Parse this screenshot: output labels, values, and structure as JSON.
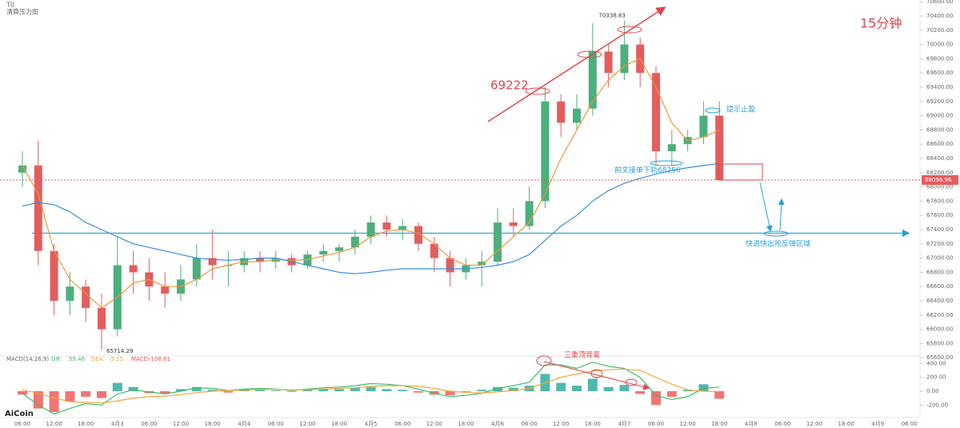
{
  "chart_data": [
    {
      "type": "candlestick",
      "title": "15分钟",
      "indicator_labels": [
        "T0",
        "清算压力图"
      ],
      "brand": "AiCoin",
      "annotations": [
        "69222",
        "提示止盈",
        "前文接单下轨68256",
        "快进快出抢反弹区域"
      ],
      "support_line": 67350,
      "up_color": "#4caf7d",
      "down_color": "#e35d5d",
      "ylim": [
        65546,
        70625
      ],
      "yticks": [
        {
          "value": 65600,
          "label": "65600.00"
        },
        {
          "value": 65800,
          "label": "65800.00"
        },
        {
          "value": 66000,
          "label": "66000.00"
        },
        {
          "value": 66200,
          "label": "66200.00"
        },
        {
          "value": 66400,
          "label": "66400.00"
        },
        {
          "value": 66600,
          "label": "66600.00"
        },
        {
          "value": 66800,
          "label": "66800.00"
        },
        {
          "value": 67000,
          "label": "67000.00"
        },
        {
          "value": 67200,
          "label": "67200.00"
        },
        {
          "value": 67400,
          "label": "67400.00"
        },
        {
          "value": 67600,
          "label": "67600.00"
        },
        {
          "value": 67800,
          "label": "67800.00"
        },
        {
          "value": 68000,
          "label": "68000.00"
        },
        {
          "value": 68200,
          "label": "68200.00"
        },
        {
          "value": 68400,
          "label": "68400.00"
        },
        {
          "value": 68600,
          "label": "68600.00"
        },
        {
          "value": 68800,
          "label": "68800.00"
        },
        {
          "value": 69000,
          "label": "69000.00"
        },
        {
          "value": 69200,
          "label": "69200.00"
        },
        {
          "value": 69400,
          "label": "69400.00"
        },
        {
          "value": 69600,
          "label": "69600.00"
        },
        {
          "value": 69800,
          "label": "69800.00"
        },
        {
          "value": 70000,
          "label": "70000.00"
        },
        {
          "value": 70200,
          "label": "70200.00"
        },
        {
          "value": 70400,
          "label": "70400.00"
        },
        {
          "value": 70600,
          "label": "70600.00"
        }
      ],
      "open": [
        68200,
        68300,
        67100,
        66400,
        66600,
        66300,
        66000,
        66900,
        66800,
        66600,
        66500,
        66700,
        67000,
        66900,
        66900,
        67000,
        66950,
        67000,
        66900,
        67050,
        67100,
        67150,
        67300,
        67500,
        67400,
        67450,
        67200,
        67000,
        66800,
        66900,
        66950,
        67500,
        67450,
        67800,
        69200,
        68900,
        69100,
        69900,
        69600,
        70000,
        69600,
        68500,
        68600,
        68700,
        69000,
        null,
        null,
        null,
        null,
        null,
        null,
        null,
        null,
        null,
        null,
        null,
        null
      ],
      "high": [
        68500,
        68650,
        67200,
        66800,
        66700,
        66500,
        67300,
        67100,
        67000,
        66800,
        66900,
        67200,
        67400,
        67100,
        67100,
        67100,
        67100,
        67050,
        67100,
        67200,
        67200,
        67400,
        67600,
        67600,
        67550,
        67500,
        67300,
        67100,
        67000,
        67100,
        67700,
        67700,
        68000,
        69400,
        69300,
        69300,
        70300,
        70000,
        70338.83,
        70100,
        69700,
        68800,
        68800,
        69200,
        69200,
        null,
        null,
        null,
        null,
        null,
        null,
        null,
        null,
        null,
        null,
        null,
        null
      ],
      "low": [
        68000,
        66900,
        66200,
        66200,
        66100,
        65714.29,
        65900,
        66500,
        66400,
        66300,
        66400,
        66600,
        66700,
        66600,
        66800,
        66800,
        66850,
        66800,
        66850,
        66950,
        66950,
        67050,
        67200,
        67300,
        67250,
        67100,
        66800,
        66600,
        66700,
        66600,
        66900,
        67300,
        67400,
        67700,
        68700,
        68800,
        69000,
        69400,
        69500,
        69400,
        68300,
        68300,
        68500,
        68600,
        68096.96,
        null,
        null,
        null,
        null,
        null,
        null,
        null,
        null,
        null,
        null,
        null,
        null
      ],
      "close": [
        68300,
        67100,
        66400,
        66600,
        66300,
        66000,
        66900,
        66800,
        66600,
        66500,
        66700,
        67000,
        66900,
        66900,
        67000,
        66950,
        67000,
        66900,
        67050,
        67100,
        67150,
        67300,
        67500,
        67400,
        67450,
        67200,
        67000,
        66800,
        66900,
        66950,
        67500,
        67450,
        67800,
        69200,
        68900,
        69100,
        69900,
        69600,
        70000,
        69600,
        68500,
        68600,
        68700,
        69000,
        68096.96,
        null,
        null,
        null,
        null,
        null,
        null,
        null,
        null,
        null,
        null,
        null,
        null
      ],
      "series": [
        {
          "color": "#f0963a",
          "values": [
            68300,
            67900,
            67100,
            66700,
            66500,
            66300,
            66450,
            66650,
            66700,
            66600,
            66600,
            66700,
            66850,
            66900,
            66950,
            66950,
            66980,
            66970,
            66980,
            67030,
            67080,
            67150,
            67300,
            67380,
            67400,
            67350,
            67200,
            67000,
            66900,
            66900,
            67100,
            67300,
            67500,
            67900,
            68400,
            68800,
            69200,
            69500,
            69700,
            69800,
            69400,
            68900,
            68650,
            68700,
            68800,
            null,
            null,
            null,
            null,
            null,
            null,
            null,
            null,
            null,
            null,
            null,
            null
          ]
        },
        {
          "color": "#3b8fd9",
          "values": [
            67730,
            67780,
            67750,
            67650,
            67500,
            67400,
            67300,
            67200,
            67150,
            67100,
            67050,
            67000,
            66980,
            66970,
            66980,
            67000,
            67000,
            66950,
            66900,
            66850,
            66800,
            66780,
            66800,
            66830,
            66850,
            66850,
            66850,
            66850,
            66850,
            66870,
            66900,
            66950,
            67050,
            67250,
            67450,
            67600,
            67800,
            67950,
            68050,
            68120,
            68180,
            68230,
            68270,
            68300,
            68330,
            null,
            null,
            null,
            null,
            null,
            null,
            null,
            null,
            null,
            null,
            null,
            null
          ]
        }
      ]
    },
    {
      "type": "macd",
      "title": "MACD(14,26,9)",
      "annotations": [
        "三重顶背离"
      ],
      "ylim": [
        -382,
        509
      ],
      "yticks": [
        {
          "value": 400,
          "label": "400.00"
        },
        {
          "value": 200,
          "label": "200.00"
        },
        {
          "value": 0,
          "label": "0.00"
        },
        {
          "value": -200,
          "label": "-200.00"
        }
      ],
      "categories": [
        "06:00",
        null,
        "12:00",
        null,
        "18:00",
        null,
        "4月3",
        null,
        "06:00",
        null,
        "12:00",
        null,
        "18:00",
        null,
        "4月4",
        null,
        "06:00",
        null,
        "12:00",
        null,
        "18:00",
        null,
        "4月5",
        null,
        "06:00",
        null,
        "12:00",
        null,
        "18:00",
        null,
        "4月6",
        null,
        "06:00",
        null,
        "12:00",
        null,
        "18:00",
        null,
        "4月7",
        null,
        "06:00",
        null,
        "12:00",
        null,
        "18:00",
        null,
        "4月8",
        null,
        "06:00",
        null,
        "12:00",
        null,
        "18:00",
        null,
        "4月9",
        null,
        "06:00"
      ],
      "series": [
        {
          "name": "DIF:",
          "color": "#3dbb6f",
          "values": [
            -30,
            -200,
            -330,
            -250,
            -180,
            -200,
            -40,
            20,
            -10,
            -40,
            0,
            50,
            40,
            10,
            30,
            40,
            30,
            10,
            30,
            50,
            60,
            80,
            110,
            100,
            80,
            30,
            -30,
            -80,
            -60,
            -30,
            40,
            80,
            130,
            380,
            380,
            330,
            420,
            360,
            330,
            200,
            -60,
            -120,
            -80,
            40,
            59.46,
            null,
            null,
            null,
            null,
            null,
            null,
            null,
            null,
            null,
            null,
            null,
            null
          ]
        },
        {
          "name": "DEA:",
          "color": "#f0a83a",
          "values": [
            20,
            -30,
            -100,
            -150,
            -160,
            -170,
            -140,
            -100,
            -80,
            -70,
            -50,
            -20,
            0,
            10,
            15,
            25,
            25,
            20,
            22,
            30,
            40,
            50,
            70,
            80,
            80,
            70,
            40,
            0,
            -20,
            -25,
            -10,
            10,
            40,
            120,
            200,
            250,
            290,
            310,
            320,
            300,
            200,
            100,
            20,
            0,
            -5.15,
            null,
            null,
            null,
            null,
            null,
            null,
            null,
            null,
            null,
            null,
            null,
            null
          ]
        },
        {
          "name": "MACD:",
          "color": "#ef5350",
          "up_color": "#26a69a",
          "values": [
            -50,
            -250,
            -300,
            -150,
            -80,
            -100,
            120,
            60,
            -30,
            -40,
            30,
            60,
            20,
            -20,
            30,
            20,
            10,
            -10,
            20,
            30,
            30,
            50,
            60,
            30,
            20,
            -20,
            -50,
            -60,
            -10,
            20,
            60,
            50,
            80,
            250,
            120,
            80,
            180,
            60,
            90,
            -40,
            -200,
            -80,
            20,
            100,
            -108.61,
            null,
            null,
            null,
            null,
            null,
            null,
            null,
            null,
            null,
            null,
            null,
            null
          ]
        }
      ]
    }
  ]
}
